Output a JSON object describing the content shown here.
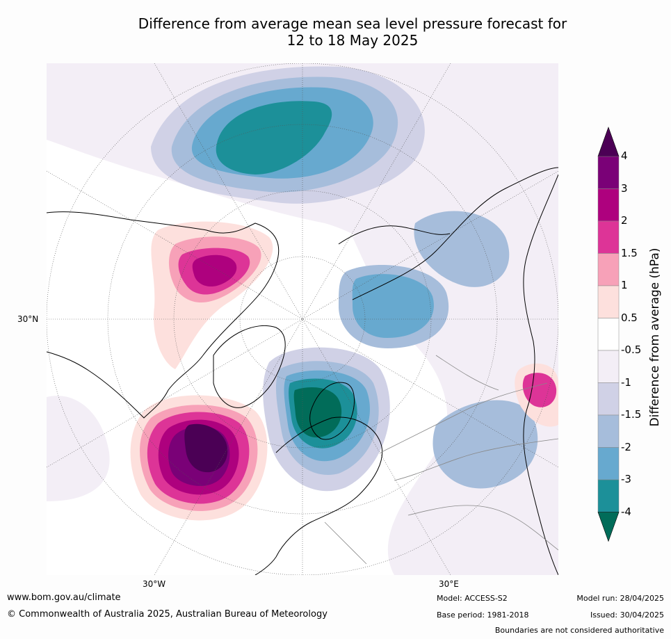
{
  "title_line1": "Difference from average mean sea level pressure forecast for",
  "title_line2": "12 to 18 May 2025",
  "map": {
    "graticule_labels": {
      "lat_30n": "30°N",
      "lon_30w": "30°W",
      "lon_30e": "30°E"
    }
  },
  "colorbar": {
    "title": "Difference from average (hPa)",
    "labels": [
      "4",
      "3",
      "2",
      "1.5",
      "1",
      "0.5",
      "-0.5",
      "-1",
      "-1.5",
      "-2",
      "-3",
      "-4"
    ],
    "colors": [
      "#4b0055",
      "#7a0177",
      "#ae017e",
      "#dd3497",
      "#f7a1b8",
      "#fde0dd",
      "#ffffff",
      "#f3eef6",
      "#d0d1e6",
      "#a6bddb",
      "#67a9cf",
      "#1c9099",
      "#016c59"
    ]
  },
  "footer": {
    "website": "www.bom.gov.au/climate",
    "copyright": "© Commonwealth of Australia 2025, Australian Bureau of Meteorology",
    "model": "Model: ACCESS-S2",
    "base_period": "Base period: 1981-2018",
    "model_run": "Model run: 28/04/2025",
    "issued": "Issued: 30/04/2025",
    "disclaimer": "Boundaries are not considered authoritative"
  }
}
